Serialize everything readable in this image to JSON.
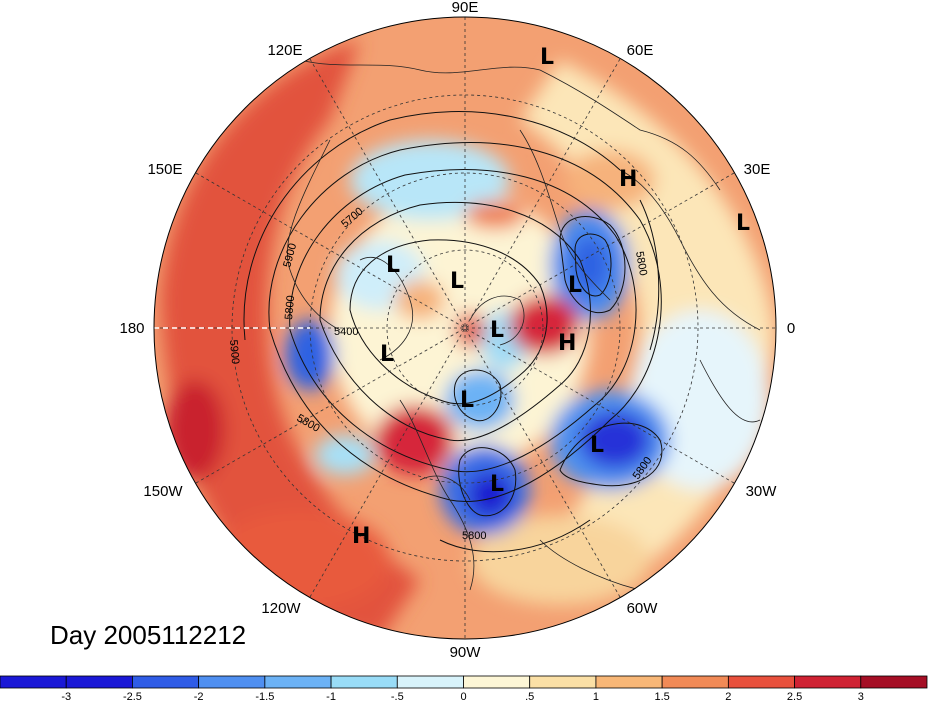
{
  "title": "Day 2005112212",
  "longitude_labels": [
    "90E",
    "120E",
    "60E",
    "150E",
    "30E",
    "180",
    "0",
    "150W",
    "30W",
    "120W",
    "60W",
    "90W"
  ],
  "contour_labels": [
    "5700",
    "5900",
    "5800",
    "5900",
    "5400",
    "5800",
    "5800",
    "5800",
    "5800"
  ],
  "pressure_centers": [
    "L",
    "H",
    "L",
    "L",
    "L",
    "L",
    "L",
    "H",
    "L",
    "L",
    "L",
    "L",
    "H"
  ],
  "colorbar": {
    "ticks": [
      "-3",
      "-2.5",
      "-2",
      "-1.5",
      "-1",
      "-.5",
      "0",
      ".5",
      "1",
      "1.5",
      "2",
      "2.5",
      "3"
    ],
    "colors": [
      "#1a18d6",
      "#2f5ce6",
      "#4f8ff0",
      "#6cb2f5",
      "#99dcf7",
      "#d8f3fb",
      "#fdf6d6",
      "#fbe0a6",
      "#f8b777",
      "#f18a56",
      "#e8503c",
      "#cf2233",
      "#a50e25"
    ]
  }
}
